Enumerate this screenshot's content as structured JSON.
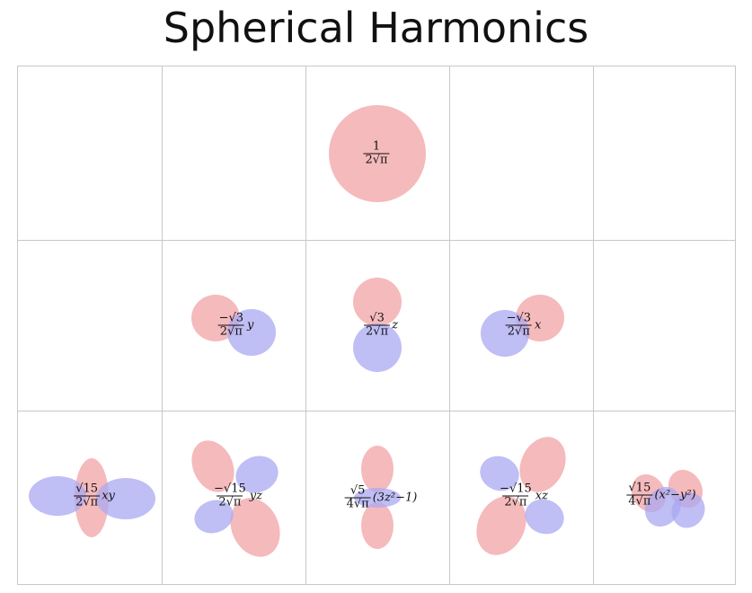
{
  "title": "Spherical Harmonics",
  "colors": {
    "positive": "#f2a3a6",
    "negative": "#a9a8f2"
  },
  "cells": [
    {
      "id": "l0-m0",
      "num": "1",
      "den": "2√π",
      "tail": ""
    },
    {
      "id": "l1-m-1",
      "num": "−√3",
      "den": "2√π",
      "tail": "y"
    },
    {
      "id": "l1-m0",
      "num": "√3",
      "den": "2√π",
      "tail": "z"
    },
    {
      "id": "l1-m1",
      "num": "−√3",
      "den": "2√π",
      "tail": "x"
    },
    {
      "id": "l2-m-2",
      "num": "√15",
      "den": "2√π",
      "tail": "xy"
    },
    {
      "id": "l2-m-1",
      "num": "−√15",
      "den": "2√π",
      "tail": "yz"
    },
    {
      "id": "l2-m0",
      "num": "√5",
      "den": "4√π",
      "tail": "(3z²−1)"
    },
    {
      "id": "l2-m1",
      "num": "−√15",
      "den": "2√π",
      "tail": "xz"
    },
    {
      "id": "l2-m2",
      "num": "√15",
      "den": "4√π",
      "tail": "(x²−y²)"
    }
  ]
}
